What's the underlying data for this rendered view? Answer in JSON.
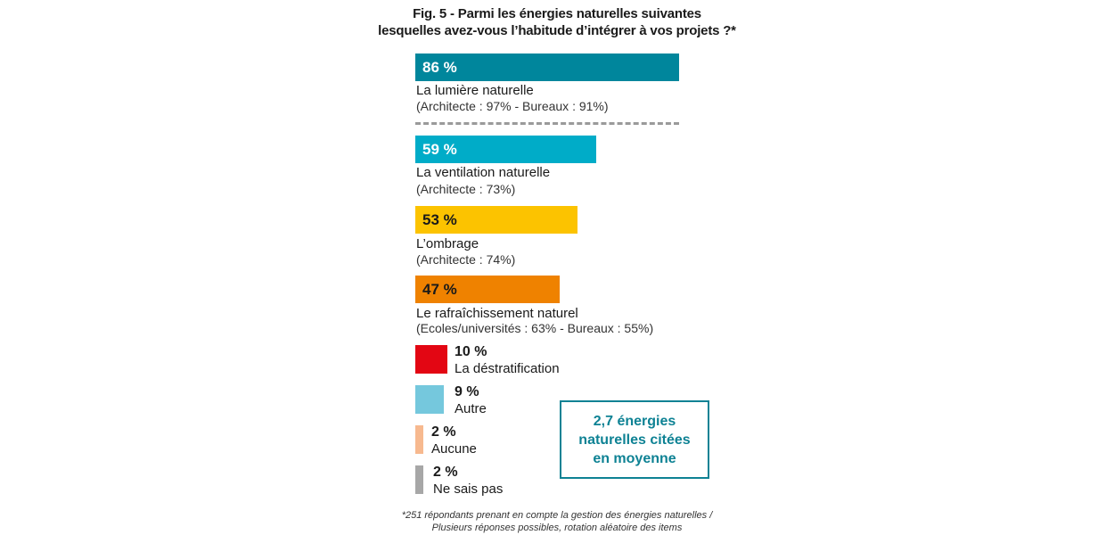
{
  "chart_data": {
    "type": "bar",
    "title": "Fig. 5 - Parmi les énergies naturelles suivantes",
    "subtitle": "lesquelles avez-vous l’habitude d’intégrer à vos projets ?*",
    "unit": "%",
    "xlim": [
      0,
      86
    ],
    "categories": [
      "La lumière naturelle",
      "La ventilation naturelle",
      "L’ombrage",
      "Le rafraîchissement naturel",
      "La déstratification",
      "Autre",
      "Aucune",
      "Ne sais pas"
    ],
    "values": [
      86,
      59,
      53,
      47,
      10,
      9,
      2,
      2
    ],
    "value_labels": [
      "86 %",
      "59 %",
      "53 %",
      "47 %",
      "10 %",
      "9 %",
      "2 %",
      "2 %"
    ],
    "sublabels": [
      "(Architecte : 97% - Bureaux : 91%)",
      "(Architecte : 73%)",
      "(Architecte : 74%)",
      "(Ecoles/universités : 63% - Bureaux : 55%)",
      "",
      "",
      "",
      ""
    ],
    "colors": [
      "#00869c",
      "#00acc8",
      "#fcc300",
      "#ef8200",
      "#e30613",
      "#75c8dd",
      "#f7b98f",
      "#a7a7a7"
    ],
    "callout": [
      "2,7 énergies",
      "naturelles citées",
      "en moyenne"
    ],
    "footnote": [
      "*251 répondants prenant en compte la gestion des énergies naturelles /",
      "Plusieurs réponses possibles, rotation aléatoire des items"
    ],
    "grid": false,
    "legend": "none"
  }
}
